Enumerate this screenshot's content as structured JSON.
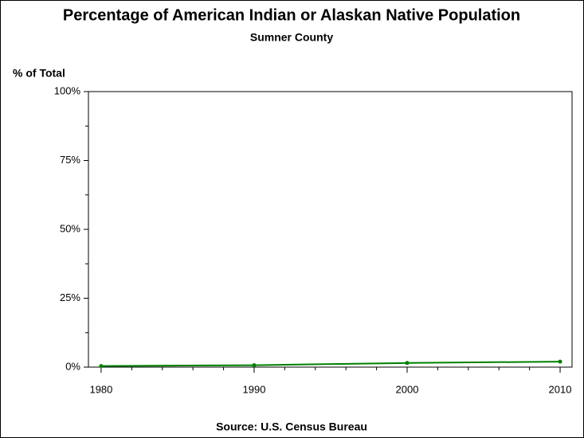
{
  "chart_data": {
    "type": "line",
    "title": "Percentage of American Indian or Alaskan Native Population",
    "subtitle": "Sumner County",
    "y_label": "% of Total",
    "source": "Source: U.S. Census Bureau",
    "x": [
      1980,
      1990,
      2000,
      2010
    ],
    "series": [
      {
        "name": "Sumner County",
        "color": "#008000",
        "values": [
          0.4,
          0.7,
          1.5,
          2.0
        ]
      }
    ],
    "xlim": [
      1979.17,
      2010.78
    ],
    "xticks": [
      1980,
      1990,
      2000,
      2010
    ],
    "xminor": [
      1982,
      1984,
      1986,
      1988,
      1992,
      1994,
      1996,
      1998,
      2002,
      2004,
      2006,
      2008
    ],
    "ylim": [
      0,
      100
    ],
    "yticks": [
      {
        "value": 0,
        "label": "0%"
      },
      {
        "value": 25,
        "label": "25%"
      },
      {
        "value": 50,
        "label": "50%"
      },
      {
        "value": 75,
        "label": "75%"
      },
      {
        "value": 100,
        "label": "100%"
      }
    ],
    "yminor": [
      12.5,
      37.5,
      62.5,
      87.5
    ],
    "grid": false
  }
}
